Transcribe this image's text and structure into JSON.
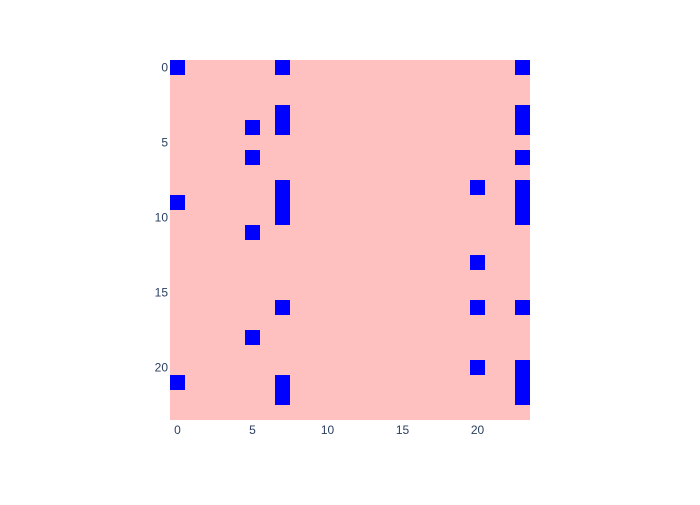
{
  "chart_data": {
    "type": "heatmap",
    "title": "",
    "xlabel": "",
    "ylabel": "",
    "x_range": [
      -0.5,
      23.5
    ],
    "y_range": [
      -0.5,
      23.5
    ],
    "y_reversed": true,
    "x_ticks": [
      0,
      5,
      10,
      15,
      20
    ],
    "y_ticks": [
      0,
      5,
      10,
      15,
      20
    ],
    "x_tick_labels": [
      "0",
      "5",
      "10",
      "15",
      "20"
    ],
    "y_tick_labels": [
      "0",
      "5",
      "10",
      "15",
      "20"
    ],
    "grid": false,
    "colors": {
      "background_value": "#ffc0c0",
      "marked_value": "#0000ff"
    },
    "rows": 24,
    "cols": 24,
    "cells": [
      [
        0,
        0
      ],
      [
        0,
        7
      ],
      [
        0,
        23
      ],
      [
        3,
        7
      ],
      [
        3,
        23
      ],
      [
        4,
        5
      ],
      [
        4,
        7
      ],
      [
        4,
        23
      ],
      [
        6,
        5
      ],
      [
        6,
        23
      ],
      [
        8,
        7
      ],
      [
        8,
        20
      ],
      [
        8,
        23
      ],
      [
        9,
        0
      ],
      [
        9,
        7
      ],
      [
        9,
        23
      ],
      [
        10,
        7
      ],
      [
        10,
        23
      ],
      [
        11,
        5
      ],
      [
        13,
        20
      ],
      [
        16,
        7
      ],
      [
        16,
        20
      ],
      [
        16,
        23
      ],
      [
        18,
        5
      ],
      [
        20,
        20
      ],
      [
        20,
        23
      ],
      [
        21,
        0
      ],
      [
        21,
        7
      ],
      [
        21,
        23
      ],
      [
        22,
        7
      ],
      [
        22,
        23
      ]
    ]
  }
}
